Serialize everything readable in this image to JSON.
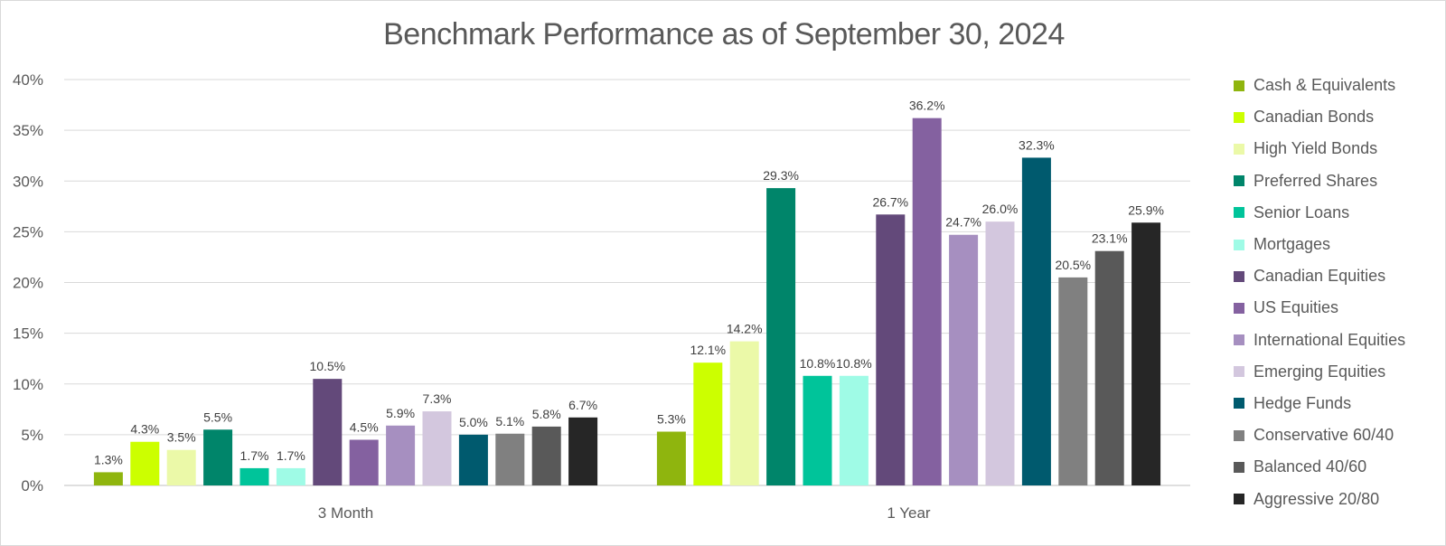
{
  "chart_data": {
    "type": "bar",
    "title": "Benchmark Performance as of September 30, 2024",
    "xlabel": "",
    "ylabel": "",
    "ylim": [
      0,
      40
    ],
    "yticks": [
      "0%",
      "5%",
      "10%",
      "15%",
      "20%",
      "25%",
      "30%",
      "35%",
      "40%"
    ],
    "categories": [
      "3 Month",
      "1 Year"
    ],
    "grid": true,
    "legend_position": "right",
    "series": [
      {
        "name": "Cash & Equivalents",
        "color": "#8fb50e",
        "values": [
          1.3,
          5.3
        ],
        "labels": [
          "1.3%",
          "5.3%"
        ]
      },
      {
        "name": "Canadian Bonds",
        "color": "#ccff00",
        "values": [
          4.3,
          12.1
        ],
        "labels": [
          "4.3%",
          "12.1%"
        ]
      },
      {
        "name": "High Yield Bonds",
        "color": "#ebf9a8",
        "values": [
          3.5,
          14.2
        ],
        "labels": [
          "3.5%",
          "14.2%"
        ]
      },
      {
        "name": "Preferred Shares",
        "color": "#00856a",
        "values": [
          5.5,
          29.3
        ],
        "labels": [
          "5.5%",
          "29.3%"
        ]
      },
      {
        "name": "Senior Loans",
        "color": "#00c49a",
        "values": [
          1.7,
          10.8
        ],
        "labels": [
          "1.7%",
          "10.8%"
        ]
      },
      {
        "name": "Mortgages",
        "color": "#9ffbe6",
        "values": [
          1.7,
          10.8
        ],
        "labels": [
          "1.7%",
          "10.8%"
        ]
      },
      {
        "name": "Canadian Equities",
        "color": "#63497a",
        "values": [
          10.5,
          26.7
        ],
        "labels": [
          "10.5%",
          "26.7%"
        ]
      },
      {
        "name": "US Equities",
        "color": "#8461a0",
        "values": [
          4.5,
          36.2
        ],
        "labels": [
          "4.5%",
          "36.2%"
        ]
      },
      {
        "name": "International Equities",
        "color": "#a68fc0",
        "values": [
          5.9,
          24.7
        ],
        "labels": [
          "5.9%",
          "24.7%"
        ]
      },
      {
        "name": "Emerging Equities",
        "color": "#d3c7de",
        "values": [
          7.3,
          26.0
        ],
        "labels": [
          "7.3%",
          "26.0%"
        ]
      },
      {
        "name": "Hedge Funds",
        "color": "#005a6e",
        "values": [
          5.0,
          32.3
        ],
        "labels": [
          "5.0%",
          "32.3%"
        ]
      },
      {
        "name": "Conservative 60/40",
        "color": "#808080",
        "values": [
          5.1,
          20.5
        ],
        "labels": [
          "5.1%",
          "20.5%"
        ]
      },
      {
        "name": "Balanced 40/60",
        "color": "#595959",
        "values": [
          5.8,
          23.1
        ],
        "labels": [
          "5.8%",
          "23.1%"
        ]
      },
      {
        "name": "Aggressive 20/80",
        "color": "#262626",
        "values": [
          6.7,
          25.9
        ],
        "labels": [
          "6.7%",
          "25.9%"
        ]
      }
    ]
  }
}
